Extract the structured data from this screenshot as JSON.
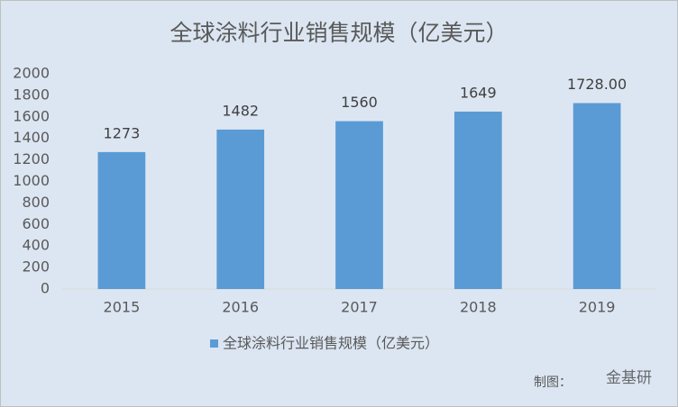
{
  "chart_data": {
    "type": "bar",
    "title": "全球涂料行业销售规模（亿美元）",
    "categories": [
      "2015",
      "2016",
      "2017",
      "2018",
      "2019"
    ],
    "series": [
      {
        "name": "全球涂料行业销售规模（亿美元）",
        "color": "#5b9bd5",
        "values": [
          1273,
          1482,
          1560,
          1649,
          1728
        ],
        "value_labels": [
          "1273",
          "1482",
          "1560",
          "1649",
          "1728.00"
        ]
      }
    ],
    "ylim": [
      0,
      2000
    ],
    "yticks": [
      0,
      200,
      400,
      600,
      800,
      1000,
      1200,
      1400,
      1600,
      1800,
      2000
    ],
    "grid": false,
    "legend": "bottom",
    "footer": "制图：",
    "watermark": "金基研"
  }
}
